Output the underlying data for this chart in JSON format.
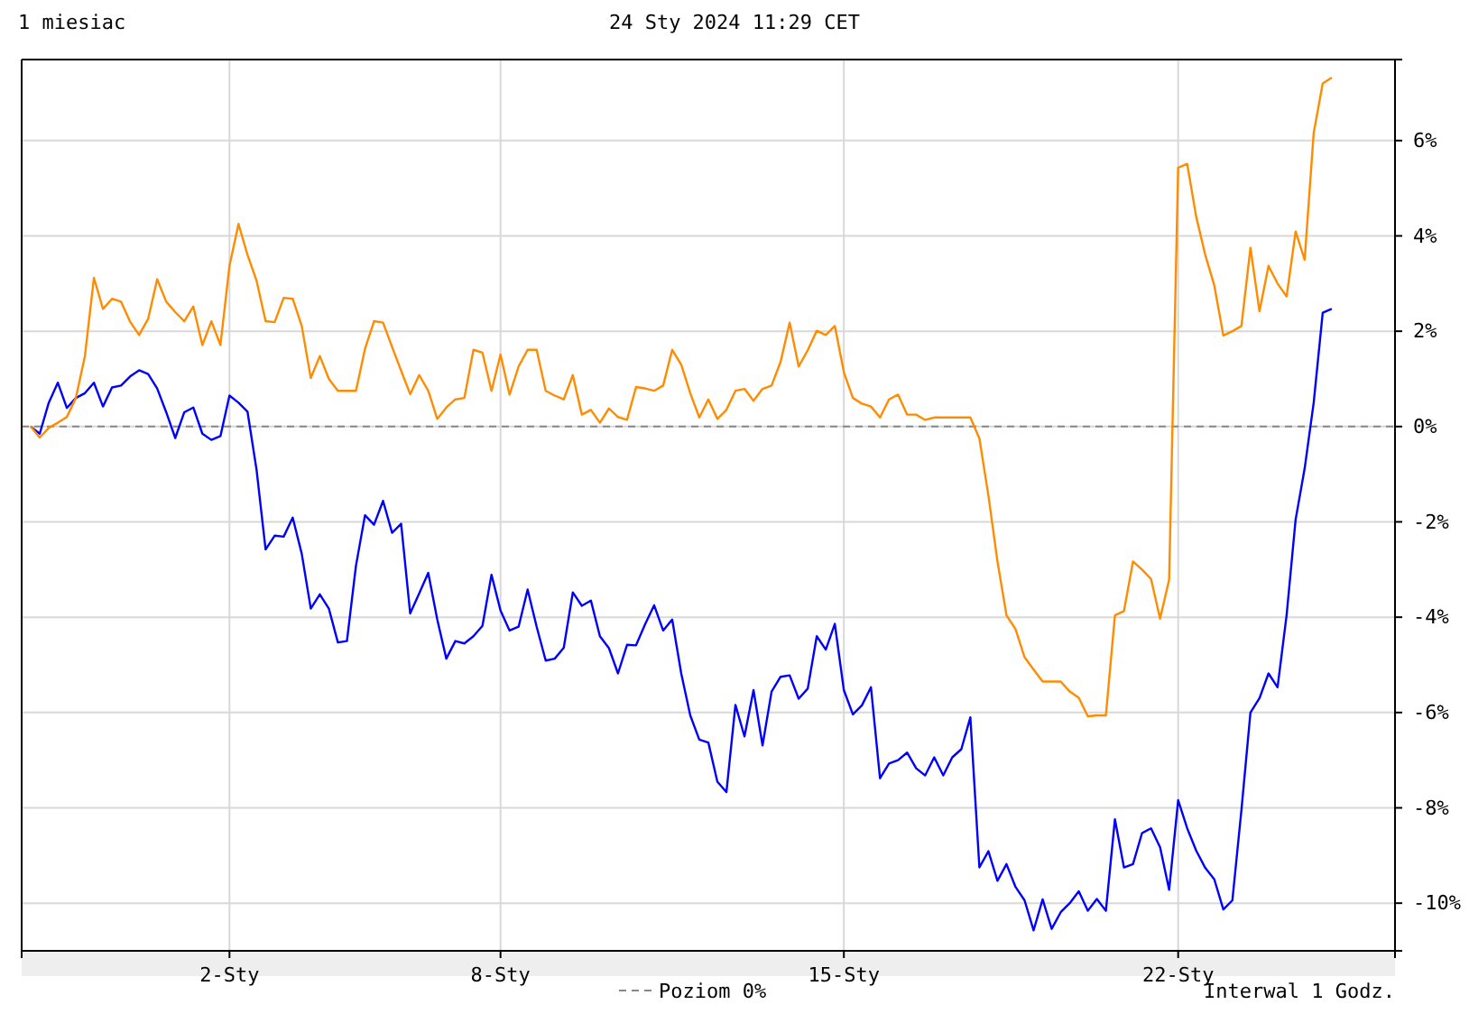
{
  "chart_data": {
    "type": "line",
    "title": "1 miesiac",
    "subtitle": "24 Sty 2024 11:29 CET",
    "annotations": [
      "Interwal 1 Godz."
    ],
    "categories": [
      null,
      null,
      null,
      null,
      null,
      null,
      null,
      null,
      null,
      null,
      null,
      null,
      null,
      null,
      null,
      null,
      null,
      null,
      null,
      null,
      null,
      null,
      null,
      "2-Sty",
      null,
      null,
      null,
      null,
      null,
      null,
      null,
      null,
      null,
      null,
      null,
      null,
      null,
      null,
      null,
      null,
      null,
      null,
      null,
      null,
      null,
      null,
      null,
      null,
      null,
      null,
      null,
      null,
      null,
      "8-Sty",
      null,
      null,
      null,
      null,
      null,
      null,
      null,
      null,
      null,
      null,
      null,
      null,
      null,
      null,
      null,
      null,
      null,
      null,
      null,
      null,
      null,
      null,
      null,
      null,
      null,
      null,
      null,
      null,
      null,
      null,
      null,
      null,
      null,
      null,
      null,
      null,
      null,
      "15-Sty",
      null,
      null,
      null,
      null,
      null,
      null,
      null,
      null,
      null,
      null,
      null,
      null,
      null,
      null,
      null,
      null,
      null,
      null,
      null,
      null,
      null,
      null,
      null,
      null,
      null,
      null,
      null,
      null,
      null,
      null,
      null,
      null,
      null,
      null,
      null,
      null,
      "22-Sty",
      null,
      null,
      null,
      null,
      null,
      null,
      null,
      null,
      null,
      null,
      null,
      null,
      null,
      null,
      null,
      null,
      null,
      null,
      null,
      null,
      null,
      null,
      null,
      null
    ],
    "ylim": [
      -11.0,
      7.7
    ],
    "yticks": [
      {
        "value": -10,
        "label": "-10%"
      },
      {
        "value": -8,
        "label": "-8%"
      },
      {
        "value": -6,
        "label": "-6%"
      },
      {
        "value": -4,
        "label": "-4%"
      },
      {
        "value": -2,
        "label": "-2%"
      },
      {
        "value": 0,
        "label": "0%"
      },
      {
        "value": 2,
        "label": "2%"
      },
      {
        "value": 4,
        "label": "4%"
      },
      {
        "value": 6,
        "label": "6%"
      }
    ],
    "grid": true,
    "ref_lines": [
      {
        "axis": "y",
        "value": 0,
        "label": "Poziom 0%",
        "color": "#888888",
        "line_style": "dashed"
      }
    ],
    "series": [
      {
        "color": "#0000ff",
        "values": [
          null,
          0,
          -0.15,
          0.5,
          0.92,
          0.39,
          0.6,
          0.7,
          0.92,
          0.42,
          0.82,
          0.86,
          1.05,
          1.18,
          1.1,
          0.8,
          0.3,
          -0.24,
          0.3,
          0.4,
          -0.15,
          -0.28,
          -0.2,
          0.65,
          0.5,
          0.31,
          -0.91,
          -2.58,
          -2.29,
          -2.31,
          -1.91,
          -2.67,
          -3.82,
          -3.52,
          -3.82,
          -4.53,
          -4.5,
          -2.92,
          -1.86,
          -2.06,
          -1.56,
          -2.23,
          -2.04,
          -3.92,
          -3.5,
          -3.07,
          -4.05,
          -4.87,
          -4.5,
          -4.55,
          -4.4,
          -4.18,
          -3.11,
          -3.86,
          -4.28,
          -4.2,
          -3.42,
          -4.2,
          -4.91,
          -4.87,
          -4.64,
          -3.48,
          -3.76,
          -3.65,
          -4.4,
          -4.65,
          -5.18,
          -4.58,
          -4.59,
          -4.15,
          -3.75,
          -4.28,
          -4.05,
          -5.18,
          -6.06,
          -6.57,
          -6.63,
          -7.45,
          -7.67,
          -5.84,
          -6.5,
          -5.53,
          -6.69,
          -5.56,
          -5.25,
          -5.22,
          -5.71,
          -5.5,
          -4.4,
          -4.68,
          -4.14,
          -5.53,
          -6.04,
          -5.85,
          -5.47,
          -7.38,
          -7.07,
          -7.0,
          -6.84,
          -7.17,
          -7.32,
          -6.94,
          -7.32,
          -6.94,
          -6.77,
          -6.1,
          -9.25,
          -8.91,
          -9.53,
          -9.18,
          -9.66,
          -9.94,
          -10.57,
          -9.92,
          -10.54,
          -10.19,
          -10.0,
          -9.75,
          -10.16,
          -9.91,
          -10.16,
          -8.24,
          -9.25,
          -9.18,
          -8.53,
          -8.43,
          -8.83,
          -9.72,
          -7.84,
          -8.43,
          -8.9,
          -9.26,
          -9.5,
          -10.13,
          -9.94,
          -8.05,
          -6.0,
          -5.7,
          -5.18,
          -5.47,
          -3.96,
          -1.95,
          -0.88,
          0.5,
          2.39,
          2.47,
          null,
          null,
          null,
          null,
          null,
          null,
          null
        ]
      },
      {
        "color": "#ff8c00",
        "values": [
          null,
          0,
          -0.23,
          -0.03,
          0.08,
          0.2,
          0.6,
          1.48,
          3.12,
          2.47,
          2.68,
          2.62,
          2.2,
          1.92,
          2.26,
          3.09,
          2.62,
          2.4,
          2.21,
          2.52,
          1.71,
          2.21,
          1.71,
          3.37,
          4.25,
          3.6,
          3.06,
          2.21,
          2.19,
          2.7,
          2.68,
          2.11,
          1.02,
          1.48,
          1.0,
          0.75,
          0.75,
          0.75,
          1.63,
          2.21,
          2.18,
          1.67,
          1.17,
          0.68,
          1.08,
          0.75,
          0.16,
          0.4,
          0.57,
          0.6,
          1.61,
          1.55,
          0.75,
          1.51,
          0.67,
          1.26,
          1.61,
          1.61,
          0.75,
          0.65,
          0.57,
          1.08,
          0.25,
          0.35,
          0.08,
          0.38,
          0.2,
          0.14,
          0.83,
          0.8,
          0.75,
          0.86,
          1.61,
          1.3,
          0.7,
          0.19,
          0.57,
          0.16,
          0.35,
          0.75,
          0.79,
          0.54,
          0.79,
          0.86,
          1.36,
          2.18,
          1.26,
          1.6,
          2.01,
          1.92,
          2.11,
          1.14,
          0.6,
          0.48,
          0.42,
          0.19,
          0.57,
          0.67,
          0.25,
          0.25,
          0.14,
          0.19,
          0.19,
          0.19,
          0.19,
          0.19,
          -0.25,
          -1.45,
          -2.83,
          -3.96,
          -4.25,
          -4.84,
          -5.1,
          -5.35,
          -5.35,
          -5.35,
          -5.56,
          -5.69,
          -6.08,
          -6.06,
          -6.06,
          -3.96,
          -3.87,
          -2.83,
          -3.0,
          -3.2,
          -4.03,
          -3.21,
          5.43,
          5.51,
          4.4,
          3.6,
          2.96,
          1.91,
          2.0,
          2.11,
          3.75,
          2.42,
          3.37,
          3.0,
          2.73,
          4.09,
          3.5,
          6.16,
          7.2,
          7.32,
          null,
          null,
          null,
          null,
          null,
          null,
          null
        ]
      }
    ]
  }
}
